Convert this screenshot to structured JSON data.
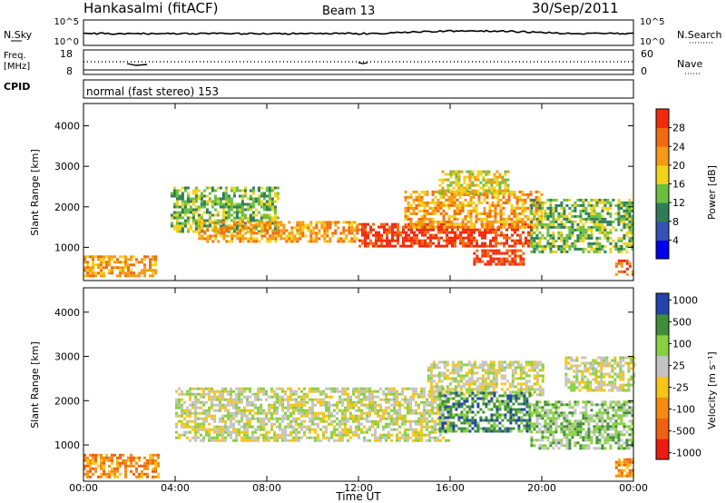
{
  "header": {
    "station": "Hankasalmi (fitACF)",
    "beam": "Beam 13",
    "date": "30/Sep/2011"
  },
  "noise_panel": {
    "left_label": "N.Sky",
    "right_label": "N.Search",
    "ticks_left": [
      "10^5",
      "10^0"
    ],
    "ticks_right": [
      "10^5",
      "10^0"
    ]
  },
  "freq_panel": {
    "left_label_1": "Freq.",
    "left_label_2": "[MHz]",
    "right_label": "Nave",
    "ticks_left": [
      "18",
      "8"
    ],
    "ticks_right": [
      "60",
      "0"
    ]
  },
  "cpid": {
    "label": "CPID",
    "mode": "normal (fast stereo) 153"
  },
  "colors": {
    "power": [
      "#0000ee",
      "#3552b4",
      "#2f7d58",
      "#6bbf3f",
      "#f2d21a",
      "#f59a12",
      "#f26b10",
      "#f22a0c"
    ],
    "velocity": [
      "#ef1a10",
      "#f06010",
      "#f58c10",
      "#f6c515",
      "#c4c4c4",
      "#8ad040",
      "#3f8f3a",
      "#2244aa"
    ]
  },
  "chart_data": [
    {
      "type": "heatmap",
      "title": "",
      "xlabel": "",
      "ylabel": "Slant Range [km]",
      "x_ticks": [
        "00:00",
        "04:00",
        "08:00",
        "12:00",
        "16:00",
        "20:00",
        "00:00"
      ],
      "y_ticks": [
        "1000",
        "2000",
        "3000",
        "4000"
      ],
      "ylim": [
        180,
        4550
      ],
      "xlim_hours": [
        0,
        24
      ],
      "colorbar": {
        "label": "Power [dB]",
        "ticks": [
          "4",
          "8",
          "12",
          "16",
          "20",
          "24",
          "28"
        ],
        "range": [
          0,
          30
        ]
      },
      "regions": [
        {
          "x0": 0.0,
          "x1": 3.2,
          "y0": 300,
          "y1": 800,
          "level": 5
        },
        {
          "x0": 3.8,
          "x1": 8.5,
          "y0": 1400,
          "y1": 2500,
          "level": 3
        },
        {
          "x0": 5.0,
          "x1": 12.0,
          "y0": 1150,
          "y1": 1650,
          "level": 5
        },
        {
          "x0": 12.0,
          "x1": 19.5,
          "y0": 1000,
          "y1": 1600,
          "level": 7
        },
        {
          "x0": 14.0,
          "x1": 20.0,
          "y0": 1500,
          "y1": 2400,
          "level": 5
        },
        {
          "x0": 15.5,
          "x1": 18.5,
          "y0": 2300,
          "y1": 2900,
          "level": 4
        },
        {
          "x0": 17.0,
          "x1": 19.2,
          "y0": 600,
          "y1": 950,
          "level": 7
        },
        {
          "x0": 19.5,
          "x1": 24.0,
          "y0": 900,
          "y1": 2200,
          "level": 3
        },
        {
          "x0": 23.2,
          "x1": 24.0,
          "y0": 300,
          "y1": 700,
          "level": 6
        }
      ]
    },
    {
      "type": "heatmap",
      "title": "",
      "xlabel": "Time UT",
      "ylabel": "Slant Range [km]",
      "x_ticks": [
        "00:00",
        "04:00",
        "08:00",
        "12:00",
        "16:00",
        "20:00",
        "00:00"
      ],
      "y_ticks": [
        "1000",
        "2000",
        "3000",
        "4000"
      ],
      "ylim": [
        180,
        4550
      ],
      "xlim_hours": [
        0,
        24
      ],
      "colorbar": {
        "label": "Velocity [m s⁻¹]",
        "ticks": [
          "1000",
          "500",
          "100",
          "25",
          "-25",
          "-100",
          "-500",
          "-1000"
        ]
      },
      "regions": [
        {
          "x0": 0.0,
          "x1": 3.3,
          "y0": 300,
          "y1": 800,
          "level": 2
        },
        {
          "x0": 4.0,
          "x1": 16.0,
          "y0": 1100,
          "y1": 2300,
          "level": 4
        },
        {
          "x0": 15.0,
          "x1": 20.0,
          "y0": 2100,
          "y1": 2900,
          "level": 4
        },
        {
          "x0": 15.5,
          "x1": 19.5,
          "y0": 1300,
          "y1": 2200,
          "level": 6
        },
        {
          "x0": 19.5,
          "x1": 24.0,
          "y0": 900,
          "y1": 2000,
          "level": 5
        },
        {
          "x0": 21.0,
          "x1": 24.0,
          "y0": 2200,
          "y1": 3000,
          "level": 4
        },
        {
          "x0": 23.2,
          "x1": 24.0,
          "y0": 300,
          "y1": 700,
          "level": 2
        }
      ]
    }
  ]
}
